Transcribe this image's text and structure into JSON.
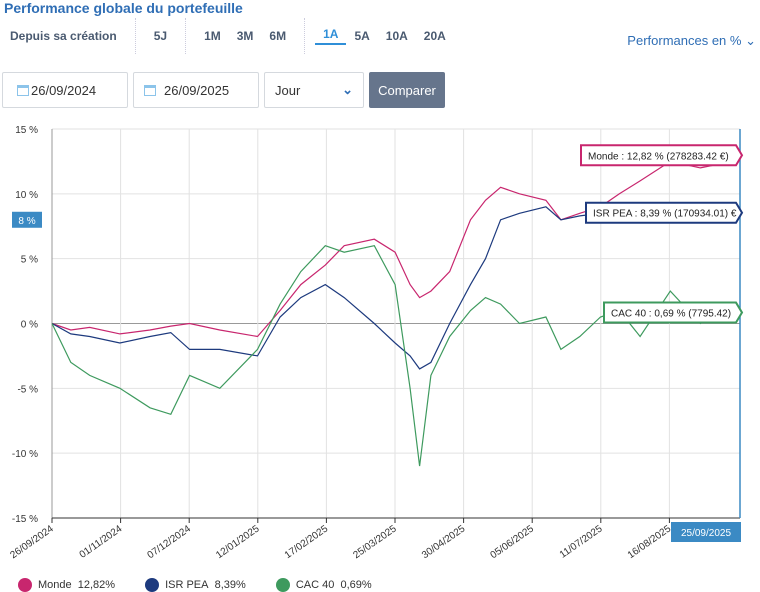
{
  "title": "Performance globale du portefeuille",
  "periods": [
    [
      "Depuis sa création"
    ],
    [
      "5J"
    ],
    [
      "1M",
      "3M",
      "6M"
    ],
    [
      "1A",
      "5A",
      "10A",
      "20A"
    ]
  ],
  "active_period": "1A",
  "perf_select": "Performances en %",
  "start_date": "26/09/2024",
  "end_date": "26/09/2025",
  "frequency": "Jour",
  "compare_label": "Comparer",
  "cursor_y_label": "8 %",
  "cursor_x_label": "25/09/2025",
  "chart_data": {
    "type": "line",
    "ylim": [
      -15,
      15
    ],
    "yticks": [
      15,
      10,
      5,
      0,
      -5,
      -10,
      -15
    ],
    "ytick_labels": [
      "15 %",
      "10 %",
      "5 %",
      "0 %",
      "-5 %",
      "-10 %",
      "-15 %"
    ],
    "xlim": [
      "2024-09-26",
      "2025-09-26"
    ],
    "xtick_labels": [
      "26/09/2024",
      "01/11/2024",
      "07/12/2024",
      "12/01/2025",
      "17/02/2025",
      "25/03/2025",
      "30/04/2025",
      "05/06/2025",
      "11/07/2025",
      "16/08/2025"
    ],
    "grid": true,
    "x": [
      "2024-09-26",
      "2024-10-06",
      "2024-10-16",
      "2024-11-01",
      "2024-11-17",
      "2024-11-28",
      "2024-12-08",
      "2024-12-24",
      "2025-01-13",
      "2025-01-25",
      "2025-02-05",
      "2025-02-18",
      "2025-02-28",
      "2025-03-16",
      "2025-03-27",
      "2025-04-04",
      "2025-04-09",
      "2025-04-15",
      "2025-04-25",
      "2025-05-06",
      "2025-05-14",
      "2025-05-22",
      "2025-06-01",
      "2025-06-15",
      "2025-06-23",
      "2025-07-03",
      "2025-07-14",
      "2025-07-24",
      "2025-08-04",
      "2025-08-20",
      "2025-09-05",
      "2025-09-15",
      "2025-09-25"
    ],
    "series": [
      {
        "name": "Monde",
        "color": "#c8266e",
        "last": "12,82%",
        "tooltip": "Monde : 12,82 % (278283.42 €)",
        "values": [
          0,
          -0.5,
          -0.3,
          -0.8,
          -0.5,
          -0.2,
          0,
          -0.5,
          -1,
          1,
          3,
          4.5,
          6,
          6.5,
          5.5,
          3,
          2,
          2.5,
          4,
          8,
          9.5,
          10.5,
          10,
          9.5,
          8,
          8.5,
          9,
          10,
          11,
          12.5,
          12,
          12.3,
          12.82
        ]
      },
      {
        "name": "ISR PEA",
        "color": "#1d3a7e",
        "last": "8,39%",
        "tooltip": "ISR PEA : 8,39 % (170934.01) €",
        "values": [
          0,
          -0.8,
          -1,
          -1.5,
          -1,
          -0.7,
          -2,
          -2,
          -2.5,
          0.5,
          2,
          3,
          2,
          0,
          -1.5,
          -2.5,
          -3.5,
          -3,
          0,
          3,
          5,
          8,
          8.5,
          9,
          8,
          8.3,
          8.5,
          8.3,
          8,
          8.2,
          8,
          8.2,
          8.39
        ]
      },
      {
        "name": "CAC 40",
        "color": "#3e9a5e",
        "last": "0,69%",
        "tooltip": "CAC 40 : 0,69 % (7795.42)",
        "values": [
          0,
          -3,
          -4,
          -5,
          -6.5,
          -7,
          -4,
          -5,
          -2,
          1.5,
          4,
          6,
          5.5,
          6,
          3,
          -5,
          -11,
          -4,
          -1,
          1,
          2,
          1.5,
          0,
          0.5,
          -2,
          -1,
          0.5,
          1,
          -1,
          2.5,
          0,
          1,
          0.69
        ]
      }
    ]
  }
}
